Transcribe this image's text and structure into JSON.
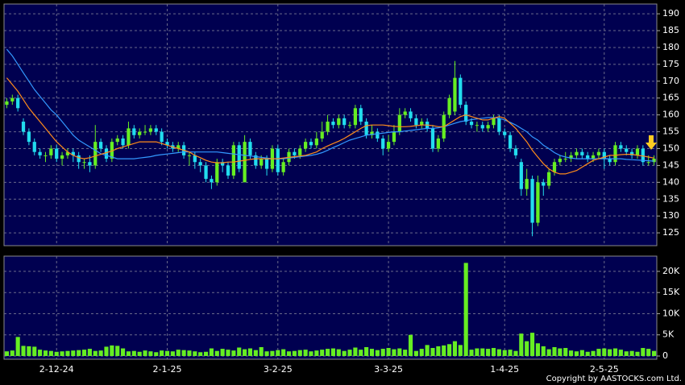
{
  "chart_data": [
    {
      "type": "candlestick",
      "categories": [
        null,
        null,
        null,
        null,
        null,
        null,
        null,
        null,
        null,
        "2-12-24",
        null,
        null,
        null,
        null,
        null,
        null,
        null,
        null,
        null,
        null,
        null,
        null,
        null,
        null,
        null,
        null,
        null,
        null,
        null,
        "2-1-25",
        null,
        null,
        null,
        null,
        null,
        null,
        null,
        null,
        null,
        null,
        null,
        null,
        null,
        null,
        null,
        null,
        null,
        null,
        null,
        "3-2-25",
        null,
        null,
        null,
        null,
        null,
        null,
        null,
        null,
        null,
        null,
        null,
        null,
        null,
        null,
        null,
        null,
        null,
        null,
        null,
        "3-3-25",
        null,
        null,
        null,
        null,
        null,
        null,
        null,
        null,
        null,
        null,
        null,
        null,
        null,
        null,
        null,
        null,
        null,
        null,
        null,
        null,
        "1-4-25",
        null,
        null,
        null,
        null,
        null,
        null,
        null,
        null,
        null,
        null,
        null,
        null,
        null,
        null,
        null,
        null,
        null,
        "2-5-25",
        null,
        null,
        null,
        null,
        null,
        null,
        null,
        null,
        null
      ],
      "open": [
        163,
        164,
        165,
        158,
        155,
        152,
        149,
        148,
        148,
        150,
        147,
        148,
        149,
        148,
        146,
        146,
        145,
        152,
        150,
        147,
        152,
        153,
        151,
        156,
        154,
        155,
        155,
        156,
        155,
        152,
        151,
        150,
        151,
        148,
        148,
        146,
        145,
        141,
        140,
        146,
        145,
        142,
        151,
        140,
        152,
        148,
        145,
        147,
        144,
        150,
        143,
        146,
        149,
        148,
        150,
        152,
        151,
        153,
        155,
        158,
        157,
        159,
        157,
        157,
        162,
        158,
        154,
        155,
        153,
        150,
        152,
        155,
        160,
        161,
        159,
        157,
        158,
        156,
        150,
        153,
        160,
        161,
        171,
        163,
        158,
        157,
        157,
        156,
        157,
        159,
        155,
        154,
        150,
        146,
        138,
        141,
        128,
        140,
        139,
        143,
        146,
        147,
        147,
        148,
        149,
        148,
        147,
        148,
        149,
        147,
        146,
        151,
        150,
        149,
        148,
        150,
        146,
        146
      ],
      "high": [
        165,
        166,
        166,
        159,
        156,
        153,
        150,
        149,
        151,
        151,
        149,
        150,
        150,
        149,
        147,
        148,
        157,
        153,
        151,
        153,
        154,
        154,
        158,
        157,
        156,
        157,
        157,
        157,
        156,
        153,
        152,
        152,
        152,
        149,
        149,
        147,
        146,
        142,
        147,
        147,
        146,
        152,
        152,
        154,
        153,
        149,
        148,
        148,
        151,
        151,
        147,
        150,
        150,
        151,
        153,
        153,
        155,
        158,
        160,
        159,
        160,
        160,
        158,
        163,
        163,
        159,
        157,
        156,
        154,
        154,
        157,
        162,
        162,
        162,
        160,
        159,
        159,
        157,
        154,
        161,
        166,
        176,
        172,
        164,
        159,
        158,
        158,
        158,
        160,
        160,
        156,
        155,
        151,
        147,
        144,
        142,
        142,
        141,
        144,
        147,
        148,
        149,
        149,
        150,
        150,
        149,
        149,
        150,
        150,
        148,
        152,
        152,
        151,
        150,
        151,
        151,
        148,
        148
      ],
      "low": [
        162,
        163,
        161,
        154,
        151,
        148,
        147,
        146,
        147,
        146,
        145,
        147,
        146,
        144,
        144,
        143,
        144,
        149,
        146,
        146,
        151,
        150,
        150,
        153,
        153,
        154,
        154,
        154,
        151,
        150,
        149,
        149,
        147,
        145,
        144,
        143,
        140,
        138,
        139,
        143,
        141,
        141,
        143,
        140,
        147,
        144,
        144,
        142,
        143,
        142,
        142,
        145,
        147,
        147,
        149,
        150,
        150,
        152,
        154,
        156,
        156,
        156,
        156,
        156,
        157,
        153,
        153,
        152,
        148,
        149,
        151,
        154,
        159,
        158,
        156,
        156,
        155,
        149,
        149,
        152,
        159,
        160,
        162,
        157,
        156,
        155,
        155,
        155,
        156,
        154,
        153,
        149,
        147,
        136,
        136,
        124,
        127,
        136,
        138,
        142,
        145,
        146,
        146,
        147,
        147,
        146,
        146,
        147,
        144,
        145,
        145,
        149,
        148,
        147,
        147,
        145,
        145,
        145
      ],
      "close": [
        164,
        165,
        162,
        155,
        152,
        149,
        148,
        148,
        150,
        147,
        148,
        149,
        148,
        146,
        146,
        145,
        152,
        150,
        147,
        152,
        153,
        151,
        156,
        154,
        155,
        155,
        156,
        155,
        152,
        151,
        150,
        151,
        148,
        148,
        146,
        145,
        141,
        140,
        146,
        145,
        142,
        151,
        144,
        152,
        148,
        145,
        147,
        144,
        150,
        143,
        146,
        149,
        148,
        150,
        152,
        151,
        153,
        155,
        158,
        157,
        159,
        157,
        157,
        162,
        158,
        154,
        155,
        153,
        150,
        152,
        155,
        160,
        161,
        159,
        157,
        158,
        156,
        150,
        153,
        160,
        165,
        171,
        163,
        158,
        157,
        157,
        156,
        157,
        159,
        155,
        154,
        150,
        148,
        138,
        141,
        128,
        140,
        139,
        143,
        146,
        147,
        147,
        148,
        149,
        148,
        147,
        148,
        149,
        147,
        146,
        151,
        150,
        149,
        148,
        150,
        146,
        146,
        147
      ],
      "up_color": "#66ee22",
      "down_color": "#22ddee",
      "series": [
        {
          "color": "#3399ff",
          "values": [
            179.5,
            177.5,
            175,
            172.5,
            170,
            167.5,
            165.5,
            163.5,
            161.5,
            160,
            158,
            156,
            154,
            152.5,
            151.5,
            150.5,
            149.5,
            148.5,
            148,
            147.5,
            147,
            147,
            147,
            147,
            147.2,
            147.4,
            147.6,
            148,
            148.2,
            148.4,
            148.6,
            148.8,
            149,
            149,
            149,
            149,
            149,
            149,
            149,
            148.8,
            148.6,
            148.4,
            148.2,
            148,
            147.8,
            147.6,
            147.4,
            147.2,
            147,
            147,
            147,
            147.2,
            147.4,
            147.6,
            147.8,
            148,
            148.3,
            148.8,
            149.5,
            150.3,
            151,
            151.8,
            152.5,
            153,
            153.5,
            154,
            154.2,
            154.4,
            154.6,
            154.8,
            155,
            155,
            155.2,
            155.4,
            155.6,
            155.8,
            156,
            156,
            156.2,
            156.5,
            157,
            157.5,
            158,
            158.3,
            158.6,
            158.8,
            159,
            159.2,
            159.2,
            159,
            158.5,
            157.8,
            157,
            156,
            155,
            153.5,
            152.5,
            151,
            150,
            148.8,
            148,
            147.5,
            147.2,
            147,
            147,
            147,
            147,
            147,
            147,
            147,
            147,
            147,
            146.8,
            146.7,
            146.6,
            146.5,
            146.4,
            146.3
          ]
        },
        {
          "color": "#ff8c1a",
          "values": [
            171,
            169,
            167,
            164.5,
            162,
            160,
            158,
            156,
            154,
            152,
            150.5,
            149,
            148,
            147.3,
            147,
            147.3,
            147.8,
            148.3,
            148.8,
            149.3,
            150,
            150.5,
            151,
            151.5,
            152,
            152,
            152,
            152,
            151.5,
            151,
            150.5,
            150,
            149.5,
            149,
            148,
            147.3,
            146.5,
            146,
            145.8,
            145.8,
            146,
            146,
            146.3,
            146.5,
            146.8,
            147,
            147,
            147,
            147,
            147,
            147.2,
            147.4,
            147.6,
            147.8,
            148,
            148.5,
            149,
            150,
            150.8,
            151.5,
            152.2,
            153,
            154,
            155,
            156,
            156.8,
            157,
            157,
            157,
            156.8,
            156.6,
            156.5,
            156.5,
            156.6,
            156.8,
            157,
            157,
            156.8,
            156.5,
            156.5,
            157.5,
            158.5,
            159.5,
            160,
            159.5,
            159,
            158.5,
            158.5,
            159,
            159.5,
            159,
            157.5,
            156,
            154,
            152,
            149.5,
            147.5,
            145.5,
            144,
            143,
            142.5,
            142.5,
            143,
            143.5,
            144.5,
            145.5,
            146.5,
            147,
            147.5,
            148,
            148,
            148.2,
            148.3,
            148.3,
            148,
            147.8,
            147.5,
            147.2
          ]
        }
      ],
      "ylim": [
        121.2,
        192.9
      ],
      "yticks": [
        125,
        130,
        135,
        140,
        145,
        150,
        155,
        160,
        165,
        170,
        175,
        180,
        185,
        190
      ],
      "grid": true
    },
    {
      "type": "bar",
      "values": [
        1100,
        1300,
        4500,
        2400,
        2300,
        2200,
        1500,
        1300,
        1200,
        1000,
        1100,
        1200,
        1300,
        1400,
        1500,
        1700,
        1200,
        1300,
        2200,
        2500,
        2400,
        1800,
        1100,
        1200,
        1000,
        1300,
        1100,
        900,
        1300,
        1200,
        1100,
        1500,
        1400,
        1300,
        1100,
        900,
        1000,
        1800,
        1200,
        1700,
        1500,
        1300,
        2000,
        1600,
        1800,
        1400,
        2100,
        1100,
        1200,
        1400,
        1600,
        1100,
        1200,
        1400,
        1500,
        1100,
        1300,
        1500,
        1700,
        1800,
        1600,
        1200,
        1500,
        2000,
        1500,
        2100,
        1700,
        1400,
        1700,
        1900,
        1600,
        1800,
        1500,
        5000,
        1200,
        1700,
        2600,
        1900,
        2300,
        2500,
        2800,
        3500,
        2600,
        22000,
        1500,
        1800,
        1800,
        1700,
        1900,
        1600,
        1400,
        1500,
        1200,
        5300,
        3500,
        5500,
        3000,
        2300,
        1600,
        2100,
        1800,
        1900,
        1300,
        1100,
        1400,
        1000,
        1200,
        1700,
        1800,
        1600,
        1800,
        1500,
        1100,
        1200,
        1000,
        1900,
        1700,
        1200
      ],
      "color": "#66ee22",
      "ylim": [
        -760,
        23600
      ],
      "yticks": [
        0,
        {
          "value": 5000,
          "label": "5K"
        },
        {
          "value": 10000,
          "label": "10K"
        },
        {
          "value": 15000,
          "label": "15K"
        },
        {
          "value": 20000,
          "label": "20K"
        }
      ],
      "grid": true
    }
  ],
  "copyright": "Copyright by AASTOCKS.com Ltd."
}
